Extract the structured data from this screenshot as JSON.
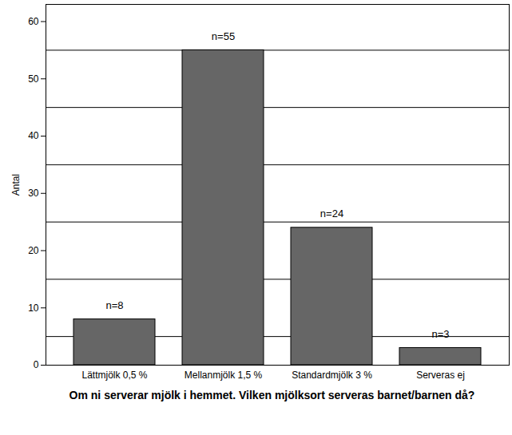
{
  "chart_data": {
    "type": "bar",
    "categories": [
      "Lättmjölk 0,5 %",
      "Mellanmjölk 1,5 %",
      "Standardmjölk 3 %",
      "Serveras ej"
    ],
    "values": [
      8,
      55,
      24,
      3
    ],
    "value_labels": [
      "n=8",
      "n=55",
      "n=24",
      "n=3"
    ],
    "data_labels": true,
    "color": "#666666",
    "x_label": "Om ni serverar mjölk i hemmet. Vilken mjölksort serveras barnet/barnen då?",
    "y_label": "Antal",
    "ylim": [
      0,
      63
    ],
    "yticks": [
      0,
      10,
      20,
      30,
      40,
      50,
      60
    ],
    "grid": true
  }
}
